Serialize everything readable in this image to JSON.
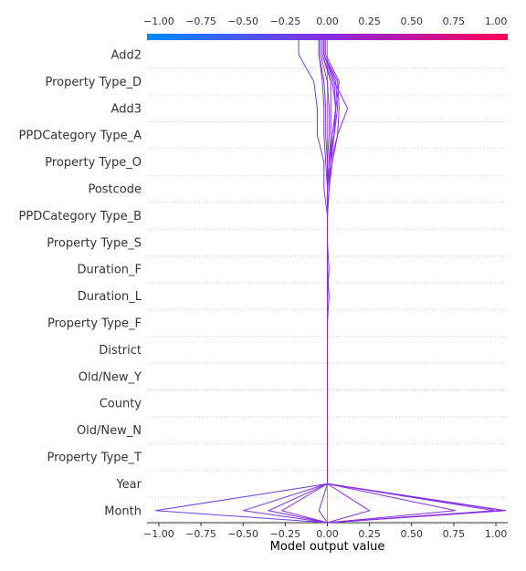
{
  "chart_data": {
    "type": "line",
    "xlabel": "Model output value",
    "xlim": [
      -1.07,
      1.07
    ],
    "xticks": [
      -1.0,
      -0.75,
      -0.5,
      -0.25,
      0.0,
      0.25,
      0.5,
      0.75,
      1.0
    ],
    "xtick_labels": [
      "−1.00",
      "−0.75",
      "−0.50",
      "−0.25",
      "0.00",
      "0.25",
      "0.50",
      "0.75",
      "1.00"
    ],
    "features": [
      "Add2",
      "Property Type_D",
      "Add3",
      "PPDCategory Type_A",
      "Property Type_O",
      "Postcode",
      "PPDCategory Type_B",
      "Property Type_S",
      "Duration_F",
      "Duration_L",
      "Property Type_F",
      "District",
      "Old/New_Y",
      "County",
      "Old/New_N",
      "Property Type_T",
      "Year",
      "Month"
    ],
    "base_value": 0.0,
    "colorbar": {
      "min": -1.0,
      "max": 1.0,
      "low_color": "#008bfb",
      "mid_color": "#8a2be2",
      "high_color": "#ff0052"
    },
    "series": [
      {
        "values": [
          -0.17,
          -0.08,
          -0.06,
          -0.06,
          -0.02,
          -0.02,
          0.0,
          0.0,
          0.0,
          0.0,
          0.0,
          0.0,
          0.0,
          0.0,
          0.0,
          0.0,
          0.0,
          -1.02
        ]
      },
      {
        "values": [
          -0.05,
          -0.03,
          -0.02,
          -0.02,
          -0.01,
          0.0,
          0.0,
          0.0,
          0.0,
          0.0,
          0.0,
          0.0,
          0.0,
          0.0,
          0.0,
          0.0,
          0.0,
          -0.5
        ]
      },
      {
        "values": [
          -0.05,
          -0.02,
          -0.01,
          -0.01,
          0.0,
          0.0,
          0.0,
          0.0,
          0.0,
          0.0,
          0.0,
          0.0,
          0.0,
          0.0,
          0.0,
          0.0,
          0.0,
          -0.35
        ]
      },
      {
        "values": [
          -0.04,
          0.0,
          0.01,
          0.01,
          0.0,
          0.0,
          0.0,
          0.0,
          0.0,
          0.0,
          0.0,
          0.0,
          0.0,
          0.0,
          0.0,
          0.0,
          0.0,
          -0.27
        ]
      },
      {
        "values": [
          -0.02,
          0.04,
          0.05,
          0.03,
          0.02,
          0.01,
          0.0,
          0.0,
          0.0,
          0.0,
          0.0,
          0.0,
          0.0,
          0.0,
          0.0,
          0.0,
          0.0,
          0.25
        ]
      },
      {
        "values": [
          -0.03,
          0.02,
          0.02,
          0.02,
          0.01,
          0.0,
          0.0,
          0.0,
          0.0,
          0.0,
          0.0,
          0.0,
          0.0,
          0.0,
          0.0,
          0.0,
          0.0,
          -0.05
        ]
      },
      {
        "values": [
          -0.02,
          0.06,
          0.07,
          0.06,
          0.02,
          0.01,
          0.0,
          0.0,
          0.0,
          0.0,
          0.0,
          0.0,
          0.0,
          0.0,
          0.0,
          0.0,
          0.0,
          0.76
        ]
      },
      {
        "values": [
          -0.02,
          0.05,
          0.06,
          0.04,
          0.01,
          0.0,
          0.0,
          0.0,
          0.0,
          0.0,
          0.0,
          0.0,
          0.0,
          0.0,
          0.0,
          0.0,
          0.0,
          0.99
        ]
      },
      {
        "values": [
          -0.03,
          0.03,
          0.05,
          0.04,
          0.02,
          0.0,
          0.0,
          0.0,
          0.0,
          0.0,
          0.0,
          0.0,
          0.0,
          0.0,
          0.0,
          0.0,
          0.0,
          1.04
        ]
      },
      {
        "values": [
          -0.01,
          0.07,
          0.05,
          0.03,
          0.01,
          0.0,
          0.0,
          0.0,
          0.0,
          0.01,
          0.0,
          0.0,
          0.0,
          0.0,
          0.0,
          0.0,
          0.0,
          1.05
        ]
      },
      {
        "values": [
          -0.02,
          0.04,
          0.12,
          0.06,
          0.03,
          0.01,
          0.0,
          0.0,
          0.01,
          0.0,
          0.0,
          0.0,
          0.0,
          0.0,
          0.0,
          0.0,
          0.0,
          1.06
        ]
      }
    ]
  }
}
